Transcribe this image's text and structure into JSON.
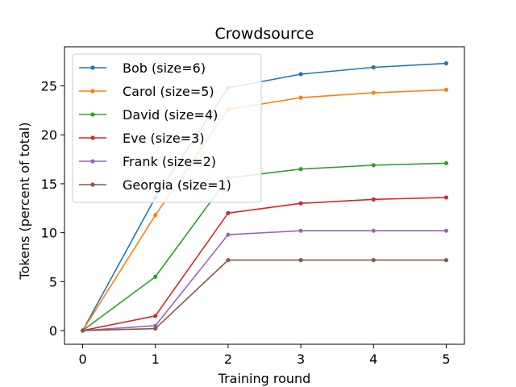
{
  "chart_data": {
    "type": "line",
    "title": "Crowdsource",
    "xlabel": "Training round",
    "ylabel": "Tokens (percent of total)",
    "x": [
      0,
      1,
      2,
      3,
      4,
      5
    ],
    "xlim": [
      -0.25,
      5.25
    ],
    "ylim": [
      -1.4,
      29.0
    ],
    "xticks": [
      0,
      1,
      2,
      3,
      4,
      5
    ],
    "yticks": [
      0,
      5,
      10,
      15,
      20,
      25
    ],
    "grid": false,
    "legend_position": "top-left",
    "series": [
      {
        "name": "Bob (size=6)",
        "color": "#1f77b4",
        "values": [
          0,
          13.6,
          24.8,
          26.2,
          26.9,
          27.3
        ]
      },
      {
        "name": "Carol (size=5)",
        "color": "#ff7f0e",
        "values": [
          0,
          11.8,
          22.6,
          23.8,
          24.3,
          24.6
        ]
      },
      {
        "name": "David (size=4)",
        "color": "#2ca02c",
        "values": [
          0,
          5.5,
          15.6,
          16.5,
          16.9,
          17.1
        ]
      },
      {
        "name": "Eve (size=3)",
        "color": "#d62728",
        "values": [
          0,
          1.5,
          12.0,
          13.0,
          13.4,
          13.6
        ]
      },
      {
        "name": "Frank (size=2)",
        "color": "#9467bd",
        "values": [
          0,
          0.5,
          9.8,
          10.2,
          10.2,
          10.2
        ]
      },
      {
        "name": "Georgia (size=1)",
        "color": "#8c564b",
        "values": [
          0,
          0.2,
          7.2,
          7.2,
          7.2,
          7.2
        ]
      }
    ]
  }
}
